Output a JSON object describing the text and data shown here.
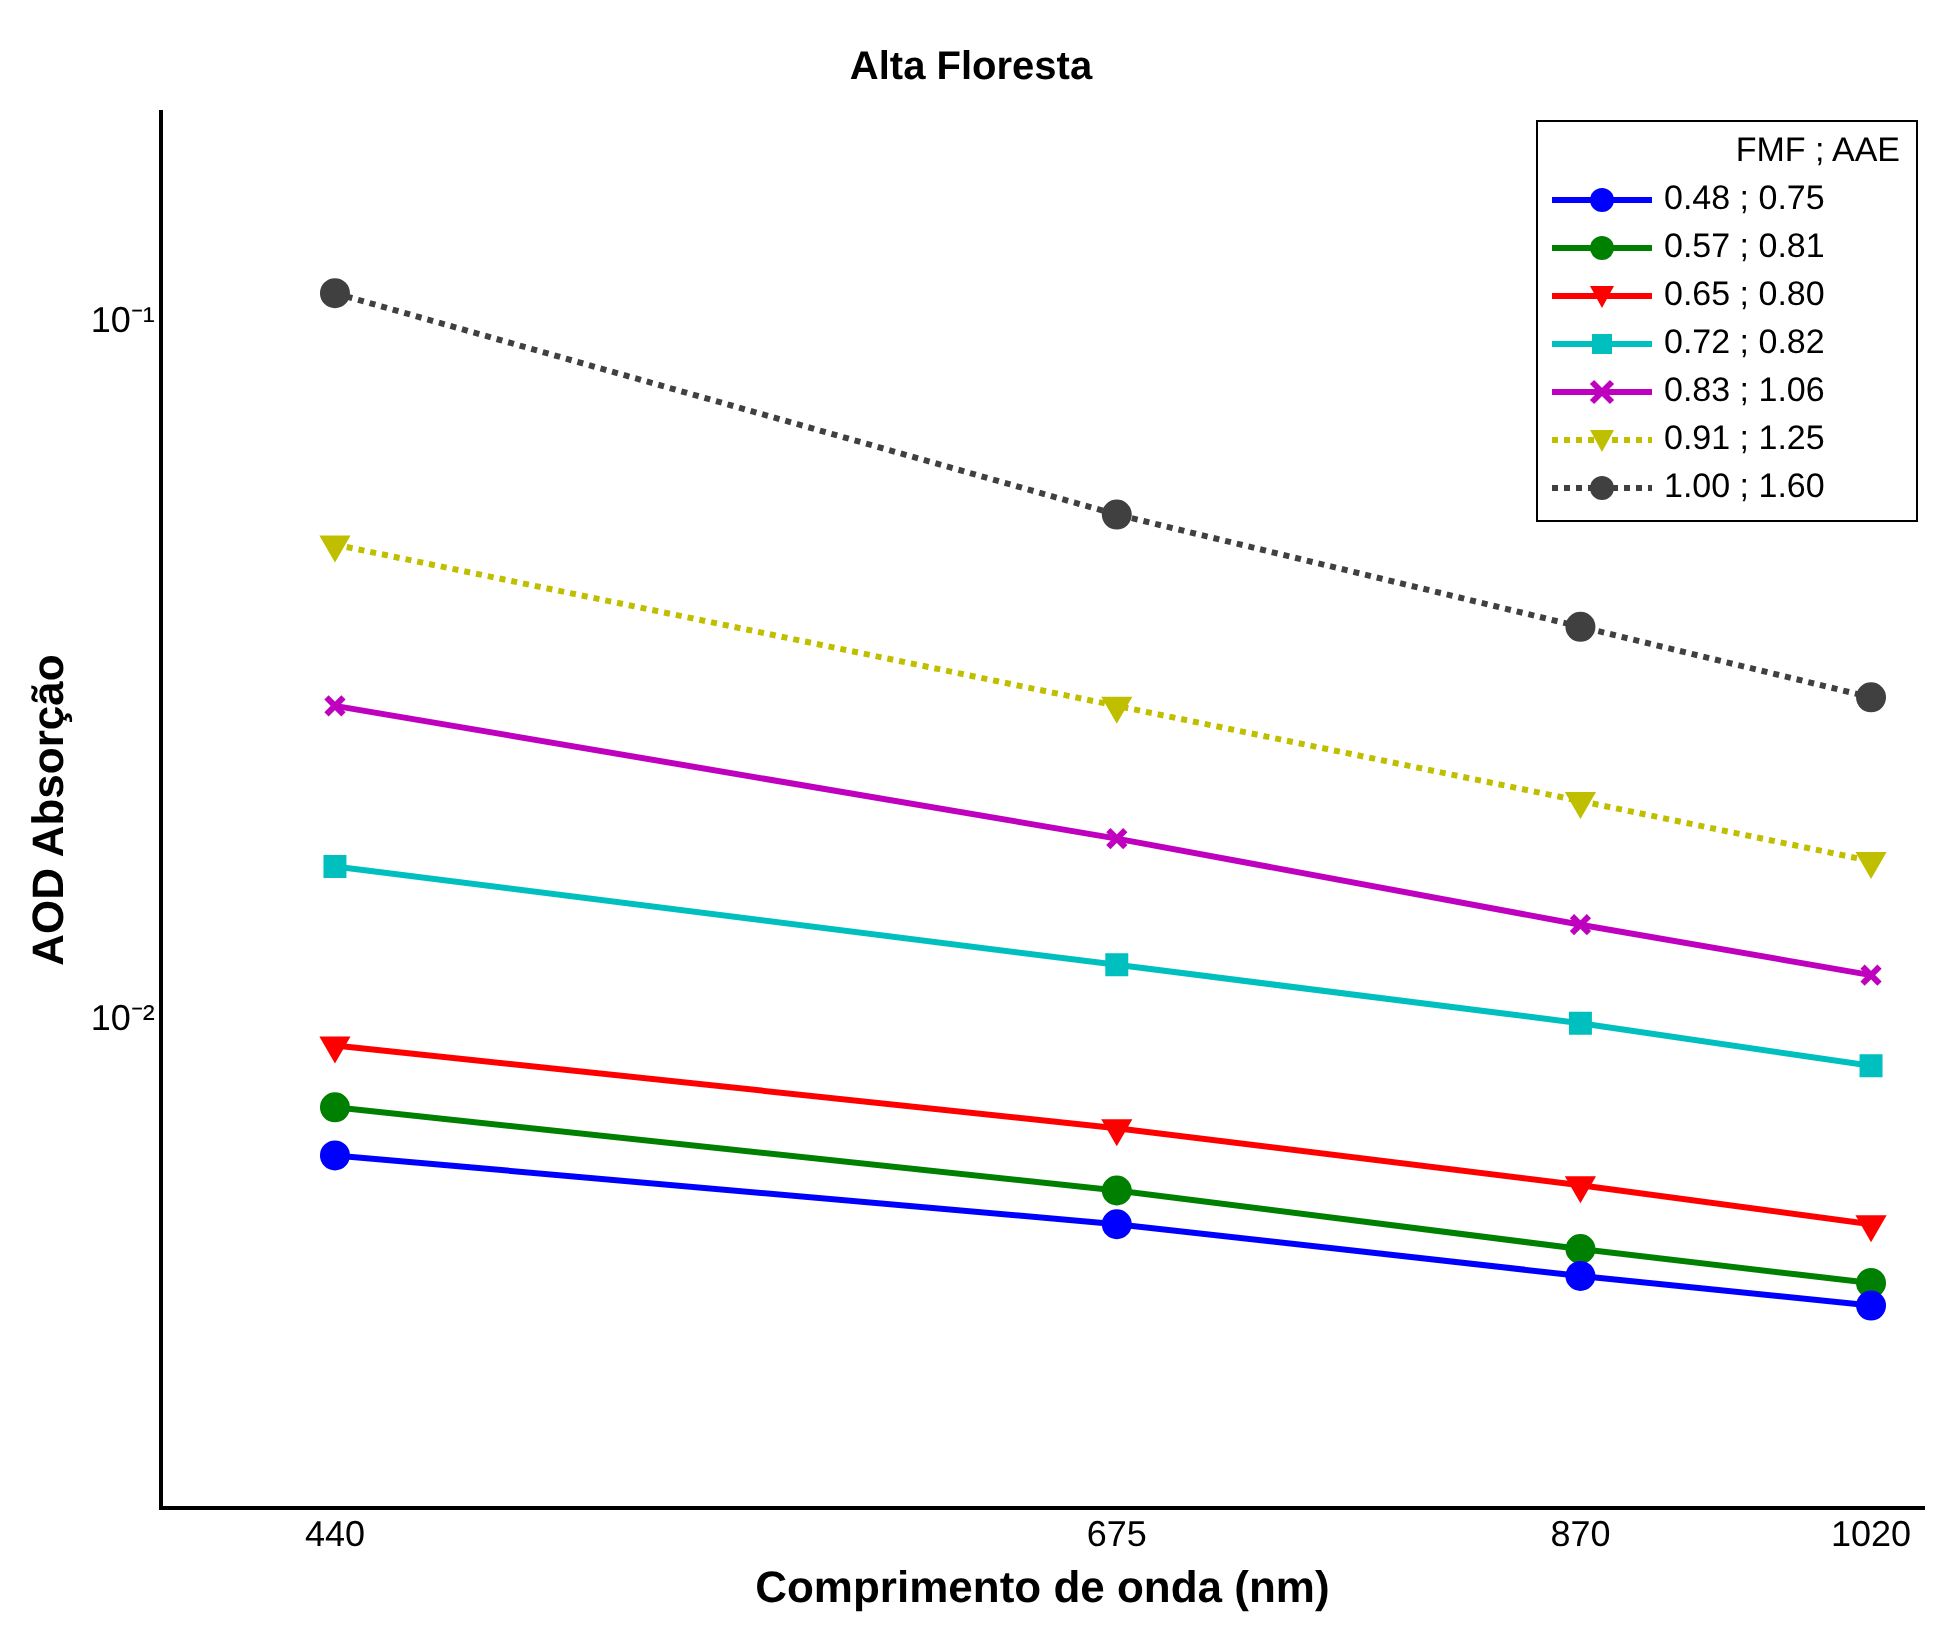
{
  "chart_data": {
    "type": "line",
    "title": "Alta Floresta",
    "xlabel": "Comprimento de onda (nm)",
    "ylabel": "AOD Absorção",
    "legend_title": "FMF ; AAE",
    "x": [
      440,
      675,
      870,
      1020
    ],
    "log": "xy",
    "xlim": [
      400,
      1050
    ],
    "xticks": [
      440,
      675,
      870,
      1020
    ],
    "ylim": [
      0.002,
      0.2
    ],
    "yticks": [
      {
        "value": 0.1,
        "label": "10⁻¹"
      },
      {
        "value": 0.01,
        "label": "10⁻²"
      }
    ],
    "grid": false,
    "legend": "top right",
    "series": [
      {
        "name": "0.48 ; 0.75",
        "color": "#0000ff",
        "marker": "circle",
        "line_style": "solid",
        "values": [
          0.0064,
          0.0051,
          0.0043,
          0.0039
        ]
      },
      {
        "name": "0.57 ; 0.81",
        "color": "#008000",
        "marker": "circle",
        "line_style": "solid",
        "values": [
          0.0075,
          0.0057,
          0.0047,
          0.0042
        ]
      },
      {
        "name": "0.65 ; 0.80",
        "color": "#ff0000",
        "marker": "triangle",
        "line_style": "solid",
        "values": [
          0.0092,
          0.007,
          0.0058,
          0.0051
        ]
      },
      {
        "name": "0.72 ; 0.82",
        "color": "#00bfbf",
        "marker": "square",
        "line_style": "solid",
        "values": [
          0.0166,
          0.012,
          0.0099,
          0.0086
        ]
      },
      {
        "name": "0.83 ; 1.06",
        "color": "#bf00bf",
        "marker": "cross",
        "line_style": "solid",
        "values": [
          0.0282,
          0.0182,
          0.0137,
          0.0116
        ]
      },
      {
        "name": "0.91 ; 1.25",
        "color": "#bfbf00",
        "marker": "triangle",
        "line_style": "dotted",
        "values": [
          0.048,
          0.0282,
          0.0206,
          0.0169
        ]
      },
      {
        "name": "1.00 ; 1.60",
        "color": "#404040",
        "marker": "circle",
        "line_style": "dotted",
        "values": [
          0.11,
          0.053,
          0.0366,
          0.029
        ]
      }
    ]
  }
}
